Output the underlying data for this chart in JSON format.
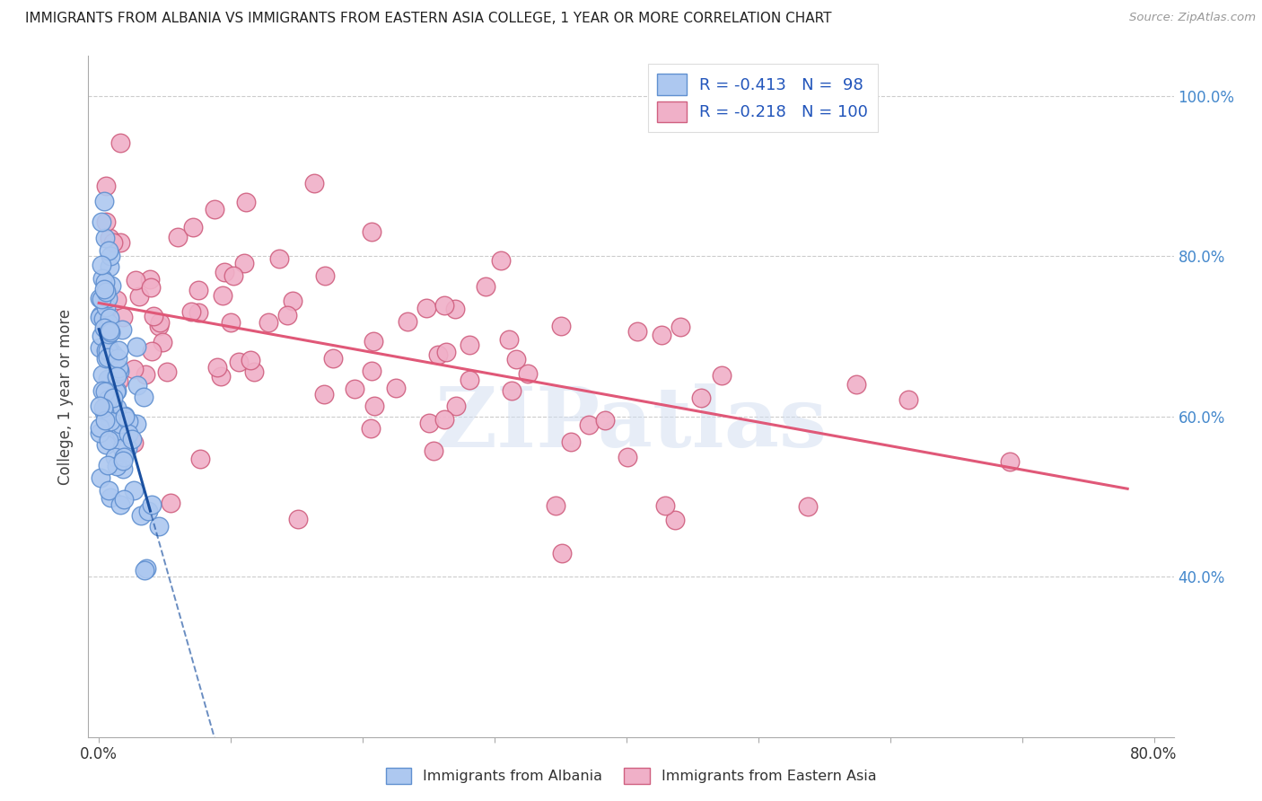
{
  "title": "IMMIGRANTS FROM ALBANIA VS IMMIGRANTS FROM EASTERN ASIA COLLEGE, 1 YEAR OR MORE CORRELATION CHART",
  "source": "Source: ZipAtlas.com",
  "ylabel": "College, 1 year or more",
  "legend_albania": "Immigrants from Albania",
  "legend_eastern_asia": "Immigrants from Eastern Asia",
  "R_albania": -0.413,
  "N_albania": 98,
  "R_eastern_asia": -0.218,
  "N_eastern_asia": 100,
  "color_albania_fill": "#adc8f0",
  "color_albania_edge": "#6090d0",
  "color_eastern_asia_fill": "#f0b0c8",
  "color_eastern_asia_edge": "#d06080",
  "color_albania_line": "#1a50a0",
  "color_eastern_asia_line": "#e05878",
  "watermark": "ZIPatlas",
  "xlim_max": 0.8,
  "ylim_min": 0.2,
  "ylim_max": 1.05,
  "yticks": [
    0.4,
    0.6,
    0.8,
    1.0
  ],
  "ytick_labels": [
    "40.0%",
    "60.0%",
    "80.0%",
    "100.0%"
  ],
  "seed_albania": 7,
  "seed_eastern_asia": 13
}
